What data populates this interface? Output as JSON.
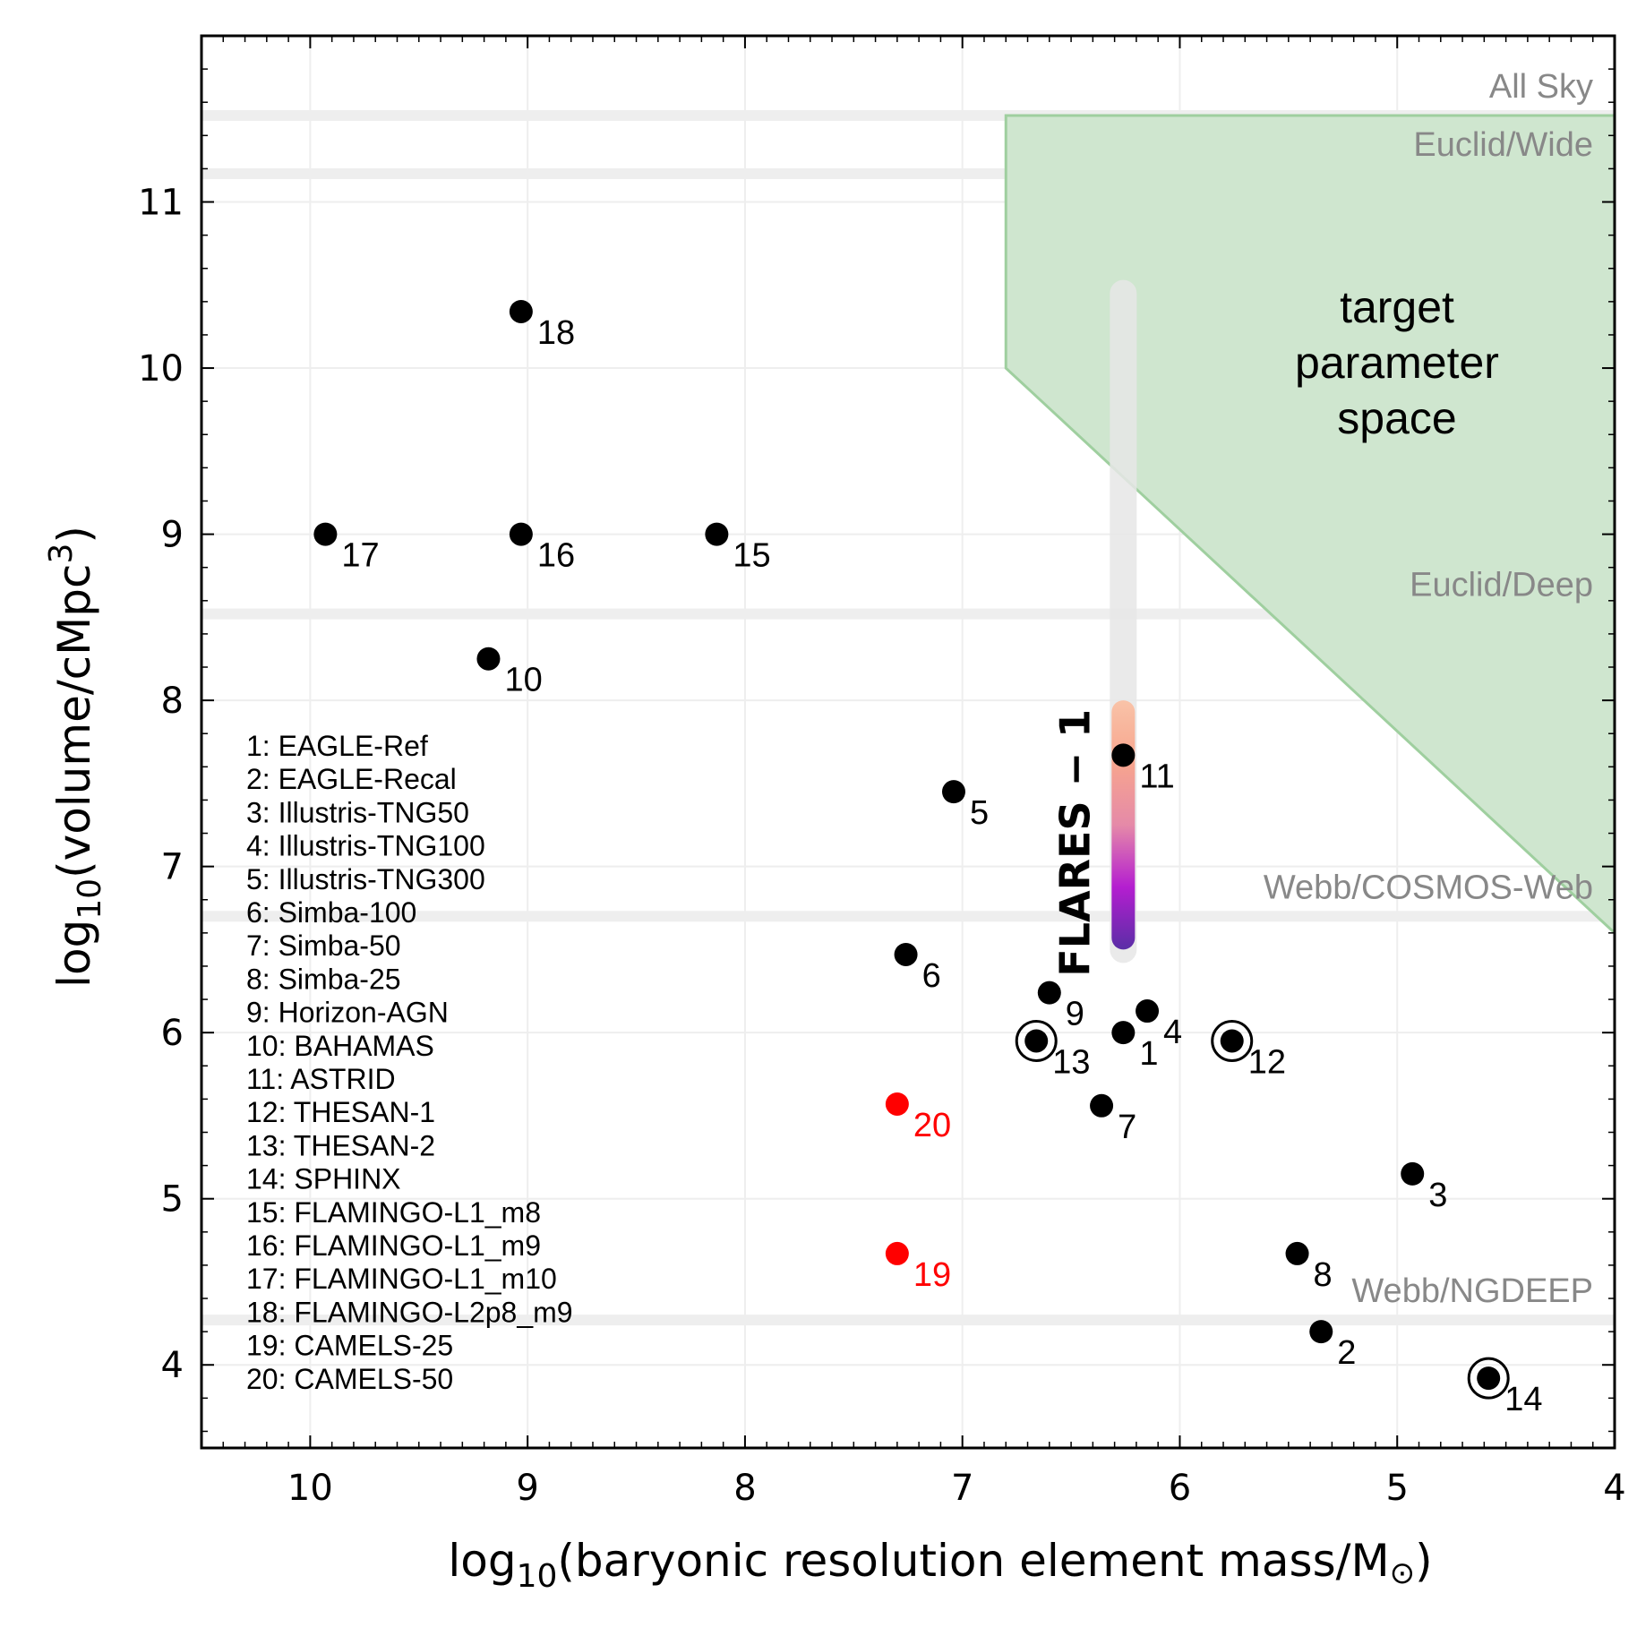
{
  "chart_data": {
    "type": "scatter",
    "title": "",
    "xlabel_prefix": "log",
    "xlabel_sub": "10",
    "xlabel_main": "(baryonic resolution element mass/M",
    "xlabel_symbol": "⊙",
    "xlabel_end": ")",
    "ylabel_prefix": "log",
    "ylabel_sub": "10",
    "ylabel_main": "(volume/cMpc",
    "ylabel_sup": "3",
    "ylabel_end": ")",
    "xlim": [
      10.5,
      4
    ],
    "ylim": [
      3.5,
      12
    ],
    "x_ticks": [
      10,
      9,
      8,
      7,
      6,
      5,
      4
    ],
    "y_ticks": [
      4,
      5,
      6,
      7,
      8,
      9,
      10,
      11
    ],
    "grid": true,
    "colors": {
      "normal": "#000000",
      "highlight": "#ff0000",
      "region_fill": "#cce5cc",
      "region_edge": "#9fcf9f",
      "survey_line": "#eeeeee"
    },
    "points": [
      {
        "id": "1",
        "x": 6.26,
        "y": 6.0,
        "color": "normal",
        "ring": false
      },
      {
        "id": "2",
        "x": 5.35,
        "y": 4.2,
        "color": "normal",
        "ring": false
      },
      {
        "id": "3",
        "x": 4.93,
        "y": 5.15,
        "color": "normal",
        "ring": false
      },
      {
        "id": "4",
        "x": 6.15,
        "y": 6.13,
        "color": "normal",
        "ring": false
      },
      {
        "id": "5",
        "x": 7.04,
        "y": 7.45,
        "color": "normal",
        "ring": false
      },
      {
        "id": "6",
        "x": 7.26,
        "y": 6.47,
        "color": "normal",
        "ring": false
      },
      {
        "id": "7",
        "x": 6.36,
        "y": 5.56,
        "color": "normal",
        "ring": false
      },
      {
        "id": "8",
        "x": 5.46,
        "y": 4.67,
        "color": "normal",
        "ring": false
      },
      {
        "id": "9",
        "x": 6.6,
        "y": 6.24,
        "color": "normal",
        "ring": false
      },
      {
        "id": "10",
        "x": 9.18,
        "y": 8.25,
        "color": "normal",
        "ring": false
      },
      {
        "id": "11",
        "x": 6.26,
        "y": 7.67,
        "color": "normal",
        "ring": false
      },
      {
        "id": "12",
        "x": 5.76,
        "y": 5.95,
        "color": "normal",
        "ring": true
      },
      {
        "id": "13",
        "x": 6.66,
        "y": 5.95,
        "color": "normal",
        "ring": true
      },
      {
        "id": "14",
        "x": 4.58,
        "y": 3.92,
        "color": "normal",
        "ring": true
      },
      {
        "id": "15",
        "x": 8.13,
        "y": 9.0,
        "color": "normal",
        "ring": false
      },
      {
        "id": "16",
        "x": 9.03,
        "y": 9.0,
        "color": "normal",
        "ring": false
      },
      {
        "id": "17",
        "x": 9.93,
        "y": 9.0,
        "color": "normal",
        "ring": false
      },
      {
        "id": "18",
        "x": 9.03,
        "y": 10.34,
        "color": "normal",
        "ring": false
      },
      {
        "id": "19",
        "x": 7.3,
        "y": 4.67,
        "color": "highlight",
        "ring": false
      },
      {
        "id": "20",
        "x": 7.3,
        "y": 5.57,
        "color": "highlight",
        "ring": false
      }
    ],
    "legend": [
      "1: EAGLE-Ref",
      "2: EAGLE-Recal",
      "3: Illustris-TNG50",
      "4: Illustris-TNG100",
      "5: Illustris-TNG300",
      "6: Simba-100",
      "7: Simba-50",
      "8: Simba-25",
      "9: Horizon-AGN",
      "10: BAHAMAS",
      "11: ASTRID",
      "12: THESAN-1",
      "13: THESAN-2",
      "14: SPHINX",
      "15: FLAMINGO-L1_m8",
      "16: FLAMINGO-L1_m9",
      "17: FLAMINGO-L1_m10",
      "18: FLAMINGO-L2p8_m9",
      "19: CAMELS-25",
      "20: CAMELS-50"
    ],
    "surveys": [
      {
        "name": "All Sky",
        "y": 11.52
      },
      {
        "name": "Euclid/Wide",
        "y": 11.17
      },
      {
        "name": "Euclid/Deep",
        "y": 8.52
      },
      {
        "name": "Webb/COSMOS-Web",
        "y": 6.7
      },
      {
        "name": "Webb/NGDEEP",
        "y": 4.27
      }
    ],
    "target_region": {
      "label_lines": [
        "target",
        "parameter",
        "space"
      ],
      "polygon": [
        [
          6.8,
          11.52
        ],
        [
          4.0,
          11.52
        ],
        [
          4.0,
          6.6
        ],
        [
          6.8,
          10.0
        ]
      ]
    },
    "flares": {
      "label": "FLARES − 1",
      "x": 6.26,
      "background_range": [
        6.5,
        10.45
      ],
      "gradient_range": [
        6.5,
        8.0
      ],
      "gradient_colors": [
        "#5a2ea6",
        "#b41ed0",
        "#e58aa8",
        "#f7a58e",
        "#f9c3a8"
      ]
    }
  }
}
